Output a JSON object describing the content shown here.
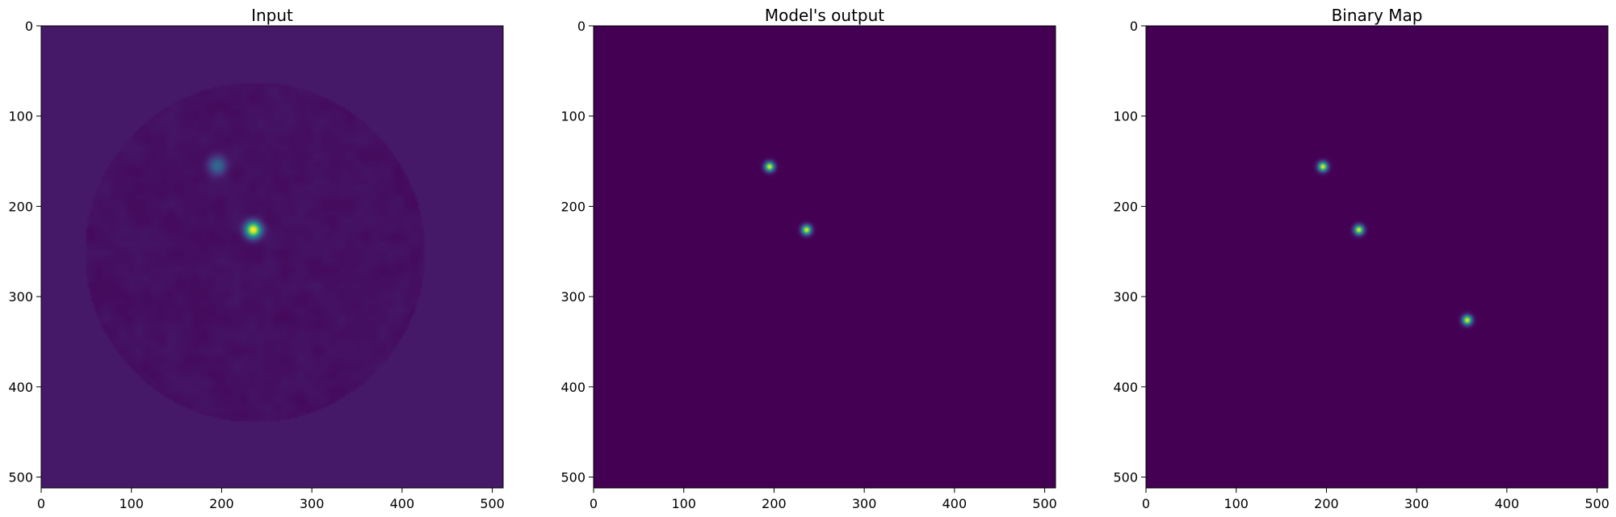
{
  "chart_data": [
    {
      "type": "heatmap",
      "title": "Input",
      "colormap": "viridis",
      "image_size": [
        512,
        512
      ],
      "xlim": [
        0,
        512
      ],
      "ylim": [
        512,
        0
      ],
      "xticks": [
        0,
        100,
        200,
        300,
        400,
        500
      ],
      "yticks": [
        0,
        100,
        200,
        300,
        400,
        500
      ],
      "background_level": 0.07,
      "disk": {
        "center": [
          237,
          251
        ],
        "radius": 188,
        "level": 0.045,
        "texture": true
      },
      "blobs": [
        {
          "x": 235,
          "y": 226,
          "sigma": 6,
          "peak": 1.0
        },
        {
          "x": 195,
          "y": 155,
          "sigma": 7,
          "peak": 0.3
        }
      ]
    },
    {
      "type": "heatmap",
      "title": "Model's output",
      "colormap": "viridis",
      "image_size": [
        512,
        512
      ],
      "xlim": [
        0,
        512
      ],
      "ylim": [
        512,
        0
      ],
      "xticks": [
        0,
        100,
        200,
        300,
        400,
        500
      ],
      "yticks": [
        0,
        100,
        200,
        300,
        400,
        500
      ],
      "background_level": 0.0,
      "blobs": [
        {
          "x": 195,
          "y": 156,
          "sigma": 3.6,
          "peak": 1.0
        },
        {
          "x": 236,
          "y": 226,
          "sigma": 3.6,
          "peak": 1.0
        }
      ]
    },
    {
      "type": "heatmap",
      "title": "Binary Map",
      "colormap": "viridis",
      "image_size": [
        512,
        512
      ],
      "xlim": [
        0,
        512
      ],
      "ylim": [
        512,
        0
      ],
      "xticks": [
        0,
        100,
        200,
        300,
        400,
        500
      ],
      "yticks": [
        0,
        100,
        200,
        300,
        400,
        500
      ],
      "background_level": 0.0,
      "blobs": [
        {
          "x": 196,
          "y": 156,
          "sigma": 3.6,
          "peak": 1.0
        },
        {
          "x": 236,
          "y": 226,
          "sigma": 3.6,
          "peak": 1.0
        },
        {
          "x": 356,
          "y": 326,
          "sigma": 3.6,
          "peak": 1.0
        }
      ]
    }
  ]
}
